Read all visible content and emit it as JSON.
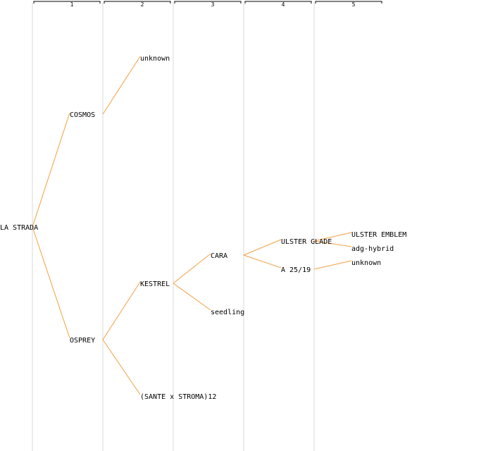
{
  "generations": [
    "1",
    "2",
    "3",
    "4",
    "5"
  ],
  "colors": {
    "edge": "#f0a040",
    "column_line": "#e6e6e6",
    "text": "#000000"
  },
  "nodes": {
    "root": "LA STRADA",
    "cosmos": "COSMOS",
    "osprey": "OSPREY",
    "cosmos_parent": "unknown",
    "kestrel": "KESTREL",
    "sante_stroma": "(SANTE x STROMA)12",
    "cara": "CARA",
    "seedling": "seedling",
    "ulster_glade": "ULSTER GLADE",
    "a2519": "A 25/19",
    "ulster_emblem": "ULSTER EMBLEM",
    "adg_hybrid": "adg-hybrid",
    "a2519_parent": "unknown"
  },
  "edges": [
    [
      "root",
      "cosmos"
    ],
    [
      "root",
      "osprey"
    ],
    [
      "cosmos",
      "cosmos_parent"
    ],
    [
      "osprey",
      "kestrel"
    ],
    [
      "osprey",
      "sante_stroma"
    ],
    [
      "kestrel",
      "cara"
    ],
    [
      "kestrel",
      "seedling"
    ],
    [
      "cara",
      "ulster_glade"
    ],
    [
      "cara",
      "a2519"
    ],
    [
      "ulster_glade",
      "ulster_emblem"
    ],
    [
      "ulster_glade",
      "adg_hybrid"
    ],
    [
      "a2519",
      "a2519_parent"
    ]
  ]
}
